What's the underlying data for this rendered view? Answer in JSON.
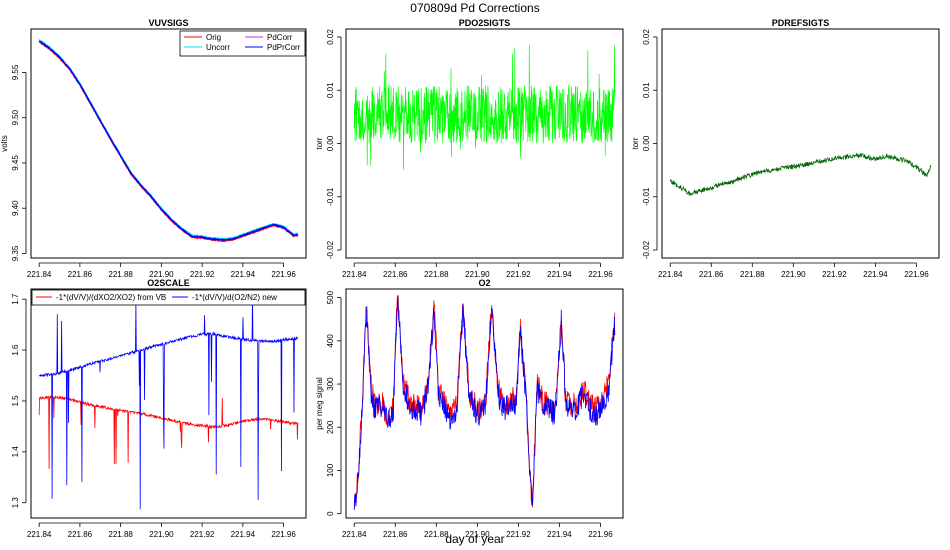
{
  "figure": {
    "title": "070809d   Pd Corrections",
    "xlabel": "day of year"
  },
  "colors": {
    "orig": "#ff0000",
    "uncorr": "#00e5ee",
    "pdcorr": "#cc33cc",
    "pdprcorr": "#0000ff",
    "pdo2": "#00ff00",
    "pdref": "#006400",
    "o2scale_vb": "#ff0000",
    "o2scale_new": "#0000ff",
    "o2_red": "#ff0000",
    "o2_blue": "#0000ff"
  },
  "chart_data": [
    {
      "id": "vuvsigs",
      "type": "line",
      "title": "VUVSIGS",
      "ylabel": "volts",
      "xlim": [
        221.836,
        221.971
      ],
      "ylim": [
        9.345,
        9.598
      ],
      "xticks": [
        221.84,
        221.86,
        221.88,
        221.9,
        221.92,
        221.94,
        221.96
      ],
      "xtick_labels": [
        "221.84",
        "221.86",
        "221.88",
        "221.90",
        "221.92",
        "221.94",
        "221.96"
      ],
      "yticks": [
        9.35,
        9.4,
        9.45,
        9.5,
        9.55
      ],
      "ytick_labels": [
        "9.35",
        "9.40",
        "9.45",
        "9.50",
        "9.55"
      ],
      "legend": {
        "placement": "top-right",
        "entries": [
          {
            "label": "Orig",
            "color": "#ff0000"
          },
          {
            "label": "PdCorr",
            "color": "#cc33cc"
          },
          {
            "label": "Uncorr",
            "color": "#00e5ee"
          },
          {
            "label": "PdPrCorr",
            "color": "#0000ff"
          }
        ]
      },
      "series": [
        {
          "name": "Orig",
          "color": "#ff0000",
          "x": [
            221.84,
            221.845,
            221.85,
            221.855,
            221.86,
            221.865,
            221.87,
            221.875,
            221.88,
            221.885,
            221.89,
            221.895,
            221.9,
            221.905,
            221.91,
            221.915,
            221.92,
            221.925,
            221.93,
            221.935,
            221.94,
            221.945,
            221.95,
            221.955,
            221.96,
            221.965,
            221.967
          ],
          "y": [
            9.584,
            9.576,
            9.566,
            9.553,
            9.536,
            9.516,
            9.496,
            9.476,
            9.457,
            9.438,
            9.424,
            9.412,
            9.398,
            9.386,
            9.376,
            9.368,
            9.367,
            9.365,
            9.364,
            9.365,
            9.369,
            9.373,
            9.377,
            9.381,
            9.378,
            9.369,
            9.37
          ]
        },
        {
          "name": "PdCorr",
          "color": "#cc33cc",
          "x": [
            221.84,
            221.845,
            221.85,
            221.855,
            221.86,
            221.865,
            221.87,
            221.875,
            221.88,
            221.885,
            221.89,
            221.895,
            221.9,
            221.905,
            221.91,
            221.915,
            221.92,
            221.925,
            221.93,
            221.935,
            221.94,
            221.945,
            221.95,
            221.955,
            221.96,
            221.965,
            221.967
          ],
          "y": [
            9.585,
            9.577,
            9.567,
            9.554,
            9.537,
            9.517,
            9.497,
            9.477,
            9.458,
            9.439,
            9.425,
            9.413,
            9.399,
            9.387,
            9.377,
            9.369,
            9.368,
            9.366,
            9.365,
            9.366,
            9.37,
            9.374,
            9.378,
            9.382,
            9.379,
            9.37,
            9.371
          ]
        },
        {
          "name": "Uncorr",
          "color": "#00e5ee",
          "x": [
            221.84,
            221.845,
            221.85,
            221.855,
            221.86,
            221.865,
            221.87,
            221.875,
            221.88,
            221.885,
            221.89,
            221.895,
            221.9,
            221.905,
            221.91,
            221.915,
            221.92,
            221.925,
            221.93,
            221.935,
            221.94,
            221.945,
            221.95,
            221.955,
            221.96,
            221.965,
            221.967
          ],
          "y": [
            9.586,
            9.578,
            9.568,
            9.555,
            9.538,
            9.518,
            9.498,
            9.478,
            9.459,
            9.44,
            9.426,
            9.414,
            9.4,
            9.388,
            9.378,
            9.37,
            9.369,
            9.367,
            9.366,
            9.367,
            9.371,
            9.375,
            9.379,
            9.383,
            9.38,
            9.371,
            9.372
          ]
        },
        {
          "name": "PdPrCorr",
          "color": "#0000ff",
          "x": [
            221.84,
            221.845,
            221.85,
            221.855,
            221.86,
            221.865,
            221.87,
            221.875,
            221.88,
            221.885,
            221.89,
            221.895,
            221.9,
            221.905,
            221.91,
            221.915,
            221.92,
            221.925,
            221.93,
            221.935,
            221.94,
            221.945,
            221.95,
            221.955,
            221.96,
            221.965,
            221.967
          ],
          "y": [
            9.585,
            9.577,
            9.567,
            9.554,
            9.537,
            9.517,
            9.497,
            9.477,
            9.458,
            9.439,
            9.425,
            9.413,
            9.399,
            9.387,
            9.377,
            9.369,
            9.368,
            9.366,
            9.365,
            9.366,
            9.37,
            9.374,
            9.378,
            9.382,
            9.379,
            9.37,
            9.371
          ]
        }
      ]
    },
    {
      "id": "pdo2sigts",
      "type": "line",
      "title": "PDO2SIGTS",
      "ylabel": "torr",
      "xlim": [
        221.836,
        221.971
      ],
      "ylim": [
        -0.0215,
        0.0215
      ],
      "xticks": [
        221.84,
        221.86,
        221.88,
        221.9,
        221.92,
        221.94,
        221.96
      ],
      "xtick_labels": [
        "221.84",
        "221.86",
        "221.88",
        "221.90",
        "221.92",
        "221.94",
        "221.96"
      ],
      "yticks": [
        -0.02,
        -0.01,
        0.0,
        0.01,
        0.02
      ],
      "ytick_labels": [
        "-0.02",
        "-0.01",
        "0.00",
        "0.01",
        "0.02"
      ],
      "series": [
        {
          "name": "PDO2SIGTS",
          "color": "#00ff00",
          "x": [
            221.84,
            221.967
          ],
          "y_center": 0.0055,
          "y_band": [
            0.0005,
            0.0105
          ],
          "spikes_max": 0.0198,
          "spikes_min": -0.0055
        }
      ]
    },
    {
      "id": "pdrefsigts",
      "type": "line",
      "title": "PDREFSIGTS",
      "ylabel": "torr",
      "xlim": [
        221.836,
        221.971
      ],
      "ylim": [
        -0.0215,
        0.0215
      ],
      "xticks": [
        221.84,
        221.86,
        221.88,
        221.9,
        221.92,
        221.94,
        221.96
      ],
      "xtick_labels": [
        "221.84",
        "221.86",
        "221.88",
        "221.90",
        "221.92",
        "221.94",
        "221.96"
      ],
      "yticks": [
        -0.02,
        -0.01,
        0.0,
        0.01,
        0.02
      ],
      "ytick_labels": [
        "-0.02",
        "-0.01",
        "0.00",
        "0.01",
        "0.02"
      ],
      "series": [
        {
          "name": "PDREFSIGTS",
          "color": "#006400",
          "x": [
            221.84,
            221.845,
            221.85,
            221.855,
            221.86,
            221.865,
            221.87,
            221.875,
            221.88,
            221.885,
            221.89,
            221.895,
            221.9,
            221.905,
            221.91,
            221.915,
            221.92,
            221.925,
            221.93,
            221.935,
            221.94,
            221.945,
            221.95,
            221.955,
            221.96,
            221.965,
            221.967
          ],
          "y": [
            -0.007,
            -0.0082,
            -0.0095,
            -0.0088,
            -0.0083,
            -0.0076,
            -0.0072,
            -0.0065,
            -0.0058,
            -0.0052,
            -0.005,
            -0.0046,
            -0.0044,
            -0.004,
            -0.0036,
            -0.0032,
            -0.0028,
            -0.0026,
            -0.0022,
            -0.0024,
            -0.003,
            -0.0024,
            -0.0028,
            -0.0032,
            -0.0045,
            -0.006,
            -0.0042
          ]
        }
      ]
    },
    {
      "id": "o2scale",
      "type": "line",
      "title": "O2SCALE",
      "ylabel": "",
      "xlim": [
        221.836,
        221.971
      ],
      "ylim": [
        1.27,
        1.72
      ],
      "xticks": [
        221.84,
        221.86,
        221.88,
        221.9,
        221.92,
        221.94,
        221.96
      ],
      "xtick_labels": [
        "221.84",
        "221.86",
        "221.88",
        "221.90",
        "221.92",
        "221.94",
        "221.96"
      ],
      "yticks": [
        1.3,
        1.4,
        1.5,
        1.6,
        1.7
      ],
      "ytick_labels": [
        "1.3",
        "1.4",
        "1.5",
        "1.6",
        "1.7"
      ],
      "legend": {
        "placement": "top",
        "entries": [
          {
            "label": "-1*(dV/V)/(dXO2/XO2) from VB",
            "color": "#ff0000"
          },
          {
            "label": "-1*(dV/V)/d(O2/N2) new",
            "color": "#0000ff"
          }
        ]
      },
      "series": [
        {
          "name": "-1*(dV/V)/(dXO2/XO2) from VB",
          "color": "#ff0000",
          "x": [
            221.84,
            221.845,
            221.85,
            221.855,
            221.86,
            221.865,
            221.87,
            221.875,
            221.88,
            221.885,
            221.89,
            221.895,
            221.9,
            221.905,
            221.91,
            221.915,
            221.92,
            221.925,
            221.93,
            221.935,
            221.94,
            221.945,
            221.95,
            221.955,
            221.96,
            221.965,
            221.967
          ],
          "y": [
            1.505,
            1.508,
            1.507,
            1.503,
            1.498,
            1.493,
            1.489,
            1.485,
            1.482,
            1.478,
            1.475,
            1.471,
            1.467,
            1.462,
            1.458,
            1.454,
            1.451,
            1.449,
            1.451,
            1.455,
            1.46,
            1.463,
            1.465,
            1.462,
            1.459,
            1.456,
            1.457
          ]
        },
        {
          "name": "-1*(dV/V)/d(O2/N2) new",
          "color": "#0000ff",
          "x": [
            221.84,
            221.845,
            221.85,
            221.855,
            221.86,
            221.865,
            221.87,
            221.875,
            221.88,
            221.885,
            221.89,
            221.895,
            221.9,
            221.905,
            221.91,
            221.915,
            221.92,
            221.925,
            221.93,
            221.935,
            221.94,
            221.945,
            221.95,
            221.955,
            221.96,
            221.965,
            221.967
          ],
          "y": [
            1.55,
            1.552,
            1.555,
            1.56,
            1.566,
            1.572,
            1.578,
            1.583,
            1.589,
            1.594,
            1.6,
            1.606,
            1.611,
            1.617,
            1.622,
            1.627,
            1.631,
            1.632,
            1.628,
            1.624,
            1.621,
            1.619,
            1.617,
            1.618,
            1.62,
            1.622,
            1.624
          ]
        }
      ]
    },
    {
      "id": "o2",
      "type": "line",
      "title": "O2",
      "ylabel": "per meg signal",
      "xlim": [
        221.836,
        221.971
      ],
      "ylim": [
        -10,
        520
      ],
      "xticks": [
        221.84,
        221.86,
        221.88,
        221.9,
        221.92,
        221.94,
        221.96
      ],
      "xtick_labels": [
        "221.84",
        "221.86",
        "221.88",
        "221.90",
        "221.92",
        "221.94",
        "221.96"
      ],
      "yticks": [
        0,
        100,
        200,
        300,
        400,
        500
      ],
      "ytick_labels": [
        "0",
        "100",
        "200",
        "300",
        "400",
        "500"
      ],
      "series": [
        {
          "name": "O2 (red)",
          "color": "#ff0000",
          "x": [
            221.84,
            221.842,
            221.844,
            221.846,
            221.848,
            221.85,
            221.853,
            221.856,
            221.859,
            221.861,
            221.864,
            221.867,
            221.87,
            221.873,
            221.876,
            221.879,
            221.881,
            221.884,
            221.887,
            221.89,
            221.893,
            221.896,
            221.899,
            221.901,
            221.904,
            221.907,
            221.91,
            221.913,
            221.916,
            221.919,
            221.921,
            221.924,
            221.926,
            221.927,
            221.929,
            221.932,
            221.935,
            221.938,
            221.941,
            221.943,
            221.946,
            221.949,
            221.952,
            221.955,
            221.958,
            221.961,
            221.964,
            221.967
          ],
          "y": [
            30,
            90,
            270,
            480,
            300,
            250,
            260,
            230,
            240,
            510,
            310,
            260,
            250,
            240,
            300,
            480,
            280,
            260,
            230,
            250,
            480,
            280,
            250,
            240,
            260,
            490,
            290,
            250,
            260,
            270,
            430,
            260,
            60,
            30,
            300,
            260,
            250,
            240,
            460,
            270,
            250,
            260,
            290,
            250,
            240,
            260,
            300,
            450
          ]
        },
        {
          "name": "O2 (blue)",
          "color": "#0000ff",
          "x": [
            221.84,
            221.842,
            221.844,
            221.846,
            221.848,
            221.85,
            221.853,
            221.856,
            221.859,
            221.861,
            221.864,
            221.867,
            221.87,
            221.873,
            221.876,
            221.879,
            221.881,
            221.884,
            221.887,
            221.89,
            221.893,
            221.896,
            221.899,
            221.901,
            221.904,
            221.907,
            221.91,
            221.913,
            221.916,
            221.919,
            221.921,
            221.924,
            221.926,
            221.927,
            221.929,
            221.932,
            221.935,
            221.938,
            221.941,
            221.943,
            221.946,
            221.949,
            221.952,
            221.955,
            221.958,
            221.961,
            221.964,
            221.967
          ],
          "y": [
            20,
            80,
            260,
            470,
            290,
            240,
            250,
            220,
            230,
            505,
            300,
            250,
            240,
            230,
            290,
            475,
            270,
            250,
            220,
            240,
            475,
            270,
            240,
            230,
            250,
            485,
            280,
            240,
            250,
            260,
            425,
            250,
            50,
            20,
            290,
            250,
            240,
            230,
            455,
            260,
            240,
            250,
            280,
            240,
            230,
            250,
            290,
            440
          ]
        }
      ]
    }
  ]
}
